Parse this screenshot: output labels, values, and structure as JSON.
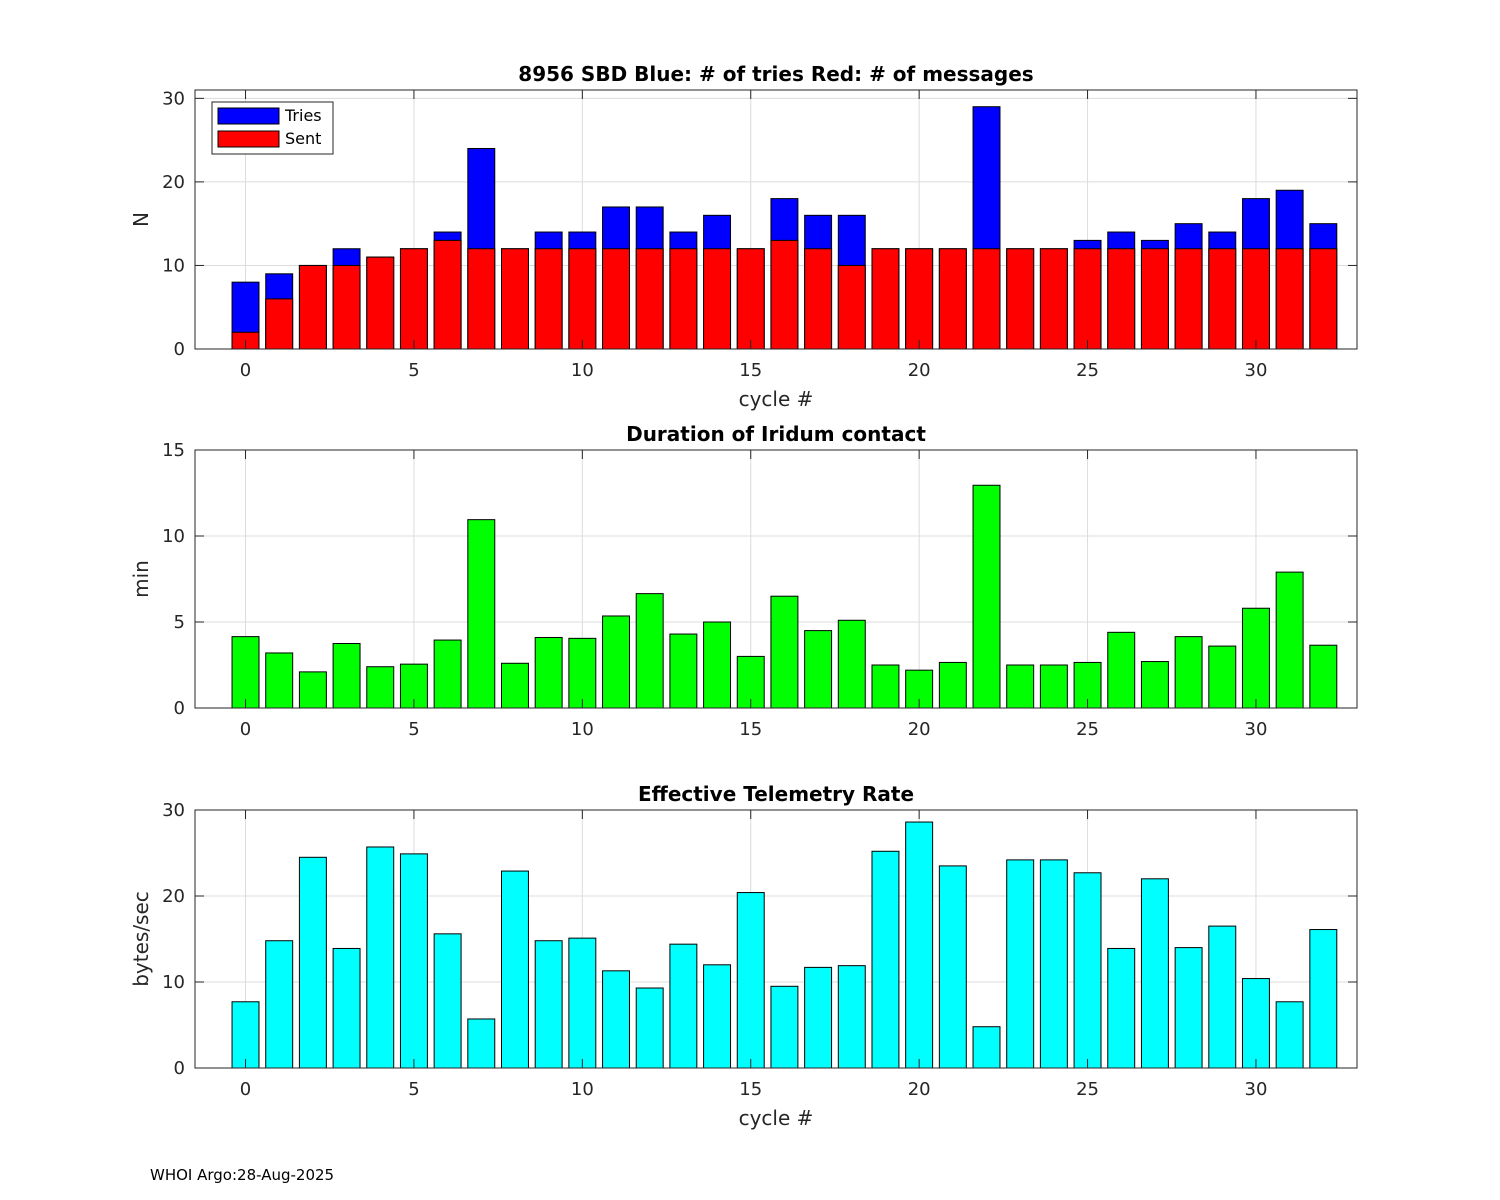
{
  "footer": "WHOI Argo:28-Aug-2025",
  "chart_data": [
    {
      "type": "bar",
      "title": "8956 SBD  Blue: # of tries   Red: # of messages",
      "xlabel": "cycle #",
      "ylabel": "N",
      "xlim": [
        -1.5,
        33
      ],
      "ylim": [
        0,
        31
      ],
      "xticks": [
        0,
        5,
        10,
        15,
        20,
        25,
        30
      ],
      "yticks": [
        0,
        10,
        20,
        30
      ],
      "grid": true,
      "legend": {
        "position": "top-left",
        "entries": [
          "Tries",
          "Sent"
        ]
      },
      "x": [
        0,
        1,
        2,
        3,
        4,
        5,
        6,
        7,
        8,
        9,
        10,
        11,
        12,
        13,
        14,
        15,
        16,
        17,
        18,
        19,
        20,
        21,
        22,
        23,
        24,
        25,
        26,
        27,
        28,
        29,
        30,
        31,
        32
      ],
      "series": [
        {
          "name": "Tries",
          "color": "#0000ff",
          "values": [
            8,
            9,
            10,
            12,
            11,
            12,
            14,
            24,
            12,
            14,
            14,
            17,
            17,
            14,
            16,
            12,
            18,
            16,
            16,
            12,
            12,
            12,
            29,
            12,
            12,
            13,
            14,
            13,
            15,
            14,
            18,
            19,
            15
          ]
        },
        {
          "name": "Sent",
          "color": "#ff0000",
          "values": [
            2,
            6,
            10,
            10,
            11,
            12,
            13,
            12,
            12,
            12,
            12,
            12,
            12,
            12,
            12,
            12,
            13,
            12,
            10,
            12,
            12,
            12,
            12,
            12,
            12,
            12,
            12,
            12,
            12,
            12,
            12,
            12,
            12
          ]
        }
      ]
    },
    {
      "type": "bar",
      "title": "Duration of Iridum contact",
      "xlabel": "",
      "ylabel": "min",
      "xlim": [
        -1.5,
        33
      ],
      "ylim": [
        0,
        15
      ],
      "xticks": [
        0,
        5,
        10,
        15,
        20,
        25,
        30
      ],
      "yticks": [
        0,
        5,
        10,
        15
      ],
      "grid": true,
      "x": [
        -1,
        0,
        1,
        2,
        3,
        4,
        5,
        6,
        7,
        8,
        9,
        10,
        11,
        12,
        13,
        14,
        15,
        16,
        17,
        18,
        19,
        20,
        21,
        22,
        23,
        24,
        25,
        26,
        27,
        28,
        29,
        30,
        31,
        32
      ],
      "series": [
        {
          "name": "Duration",
          "color": "#00ff00",
          "values": [
            0,
            4.15,
            3.2,
            2.1,
            3.75,
            2.4,
            2.55,
            3.95,
            10.95,
            2.6,
            4.1,
            4.05,
            5.35,
            6.65,
            4.3,
            5.0,
            3.0,
            6.5,
            4.5,
            5.1,
            2.5,
            2.2,
            2.65,
            12.95,
            2.5,
            2.5,
            2.65,
            4.4,
            2.7,
            4.15,
            3.6,
            5.8,
            7.9,
            3.65
          ]
        }
      ]
    },
    {
      "type": "bar",
      "title": "Effective Telemetry Rate",
      "xlabel": "cycle #",
      "ylabel": "bytes/sec",
      "xlim": [
        -1.5,
        33
      ],
      "ylim": [
        0,
        30
      ],
      "xticks": [
        0,
        5,
        10,
        15,
        20,
        25,
        30
      ],
      "yticks": [
        0,
        10,
        20,
        30
      ],
      "grid": true,
      "x": [
        0,
        1,
        2,
        3,
        4,
        5,
        6,
        7,
        8,
        9,
        10,
        11,
        12,
        13,
        14,
        15,
        16,
        17,
        18,
        19,
        20,
        21,
        22,
        23,
        24,
        25,
        26,
        27,
        28,
        29,
        30,
        31,
        32
      ],
      "series": [
        {
          "name": "Rate",
          "color": "#00ffff",
          "values": [
            7.7,
            14.8,
            24.5,
            13.9,
            25.7,
            24.9,
            15.6,
            5.7,
            22.9,
            14.8,
            15.1,
            11.3,
            9.3,
            14.4,
            12.0,
            20.4,
            9.5,
            11.7,
            11.9,
            25.2,
            28.6,
            23.5,
            4.8,
            24.2,
            24.2,
            22.7,
            13.9,
            22.0,
            14.0,
            16.5,
            10.4,
            7.7,
            16.1
          ]
        }
      ]
    }
  ]
}
